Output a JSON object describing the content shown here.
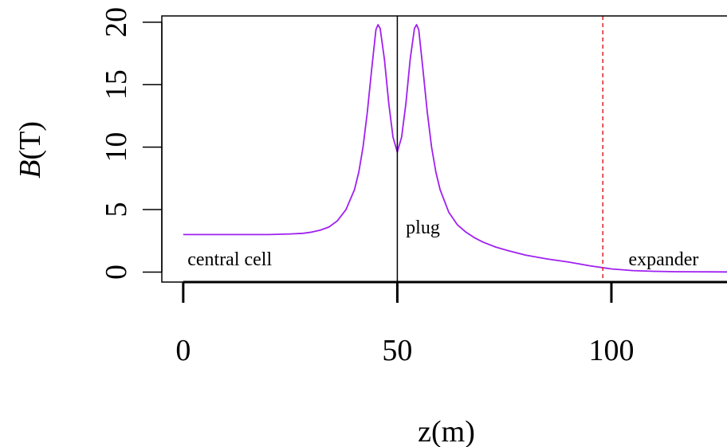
{
  "chart_data": {
    "type": "line",
    "title": "",
    "xlabel": "z(m)",
    "ylabel_var": "B",
    "ylabel_unit": "(T)",
    "xlim": [
      -5,
      127
    ],
    "ylim": [
      -0.8,
      20.5
    ],
    "x_ticks": [
      0,
      50,
      100
    ],
    "y_ticks": [
      0,
      5,
      10,
      15,
      20
    ],
    "grid": false,
    "legend": "none",
    "series": [
      {
        "color": "#a020f0",
        "x": [
          0,
          10,
          20,
          25,
          28,
          30,
          32,
          34,
          36,
          38,
          40,
          41,
          42,
          43,
          44,
          45,
          45.5,
          46,
          47,
          48,
          49,
          50,
          51,
          52,
          53,
          54,
          54.5,
          55,
          56,
          57,
          58,
          59,
          60,
          62,
          64,
          66,
          68,
          70,
          73,
          76,
          80,
          85,
          90,
          95,
          100,
          105,
          110,
          115,
          120,
          127
        ],
        "y": [
          3.0,
          3.0,
          3.0,
          3.05,
          3.1,
          3.2,
          3.35,
          3.6,
          4.1,
          5.0,
          6.6,
          8.0,
          10.0,
          12.8,
          16.2,
          19.4,
          19.8,
          19.5,
          17.0,
          13.5,
          10.8,
          9.6,
          10.8,
          13.5,
          17.0,
          19.5,
          19.8,
          19.4,
          16.2,
          12.8,
          10.0,
          8.0,
          6.6,
          4.8,
          3.8,
          3.2,
          2.75,
          2.4,
          2.0,
          1.7,
          1.35,
          1.05,
          0.8,
          0.5,
          0.25,
          0.12,
          0.06,
          0.03,
          0.02,
          0.01
        ]
      }
    ],
    "reference_lines": [
      {
        "x": 50,
        "color": "#000000",
        "style": "solid"
      },
      {
        "x": 98,
        "color": "#dd2222",
        "style": "dashed"
      }
    ],
    "annotations": [
      {
        "text": "central cell",
        "x": 1,
        "y": 0.55
      },
      {
        "text": "plug",
        "x": 52,
        "y": 3.1
      },
      {
        "text": "expander",
        "x": 104,
        "y": 0.55
      }
    ]
  }
}
